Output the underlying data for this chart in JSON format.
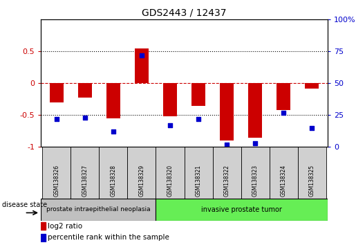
{
  "title": "GDS2443 / 12437",
  "samples": [
    "GSM138326",
    "GSM138327",
    "GSM138328",
    "GSM138329",
    "GSM138320",
    "GSM138321",
    "GSM138322",
    "GSM138323",
    "GSM138324",
    "GSM138325"
  ],
  "log2_ratio": [
    -0.3,
    -0.22,
    -0.55,
    0.55,
    -0.52,
    -0.35,
    -0.9,
    -0.85,
    -0.42,
    -0.08
  ],
  "percentile_rank": [
    22,
    23,
    12,
    72,
    17,
    22,
    2,
    3,
    27,
    15
  ],
  "group1_count": 4,
  "group2_count": 6,
  "group1_label": "prostate intraepithelial neoplasia",
  "group2_label": "invasive prostate tumor",
  "disease_state_label": "disease state",
  "bar_color": "#cc0000",
  "dot_color": "#0000cc",
  "sample_box_color": "#d0d0d0",
  "group1_color": "#c0c0c0",
  "group2_color": "#66ee55",
  "ylim_left": [
    -1,
    1
  ],
  "ylim_right": [
    0,
    100
  ],
  "yticks_left": [
    -1,
    -0.5,
    0,
    0.5
  ],
  "ytick_labels_left": [
    "-1",
    "-0.5",
    "0",
    "0.5"
  ],
  "yticks_right": [
    0,
    25,
    50,
    75,
    100
  ],
  "ytick_labels_right": [
    "0",
    "25",
    "50",
    "75",
    "100%"
  ],
  "hlines_dotted": [
    -0.5,
    0.5
  ],
  "hline_red": 0,
  "legend_log2": "log2 ratio",
  "legend_pct": "percentile rank within the sample",
  "background_color": "#ffffff",
  "bar_width": 0.5
}
